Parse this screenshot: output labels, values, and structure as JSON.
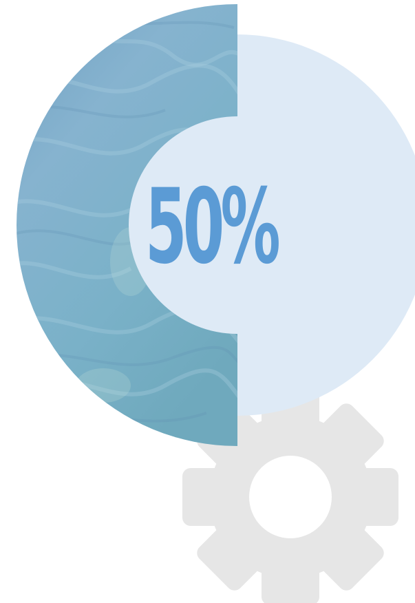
{
  "progress": {
    "label": "50%",
    "value": 0.5
  },
  "icons": {
    "decorative": "gear-icon"
  },
  "colors": {
    "text_accent": "#5b9bd5",
    "light_fill": "#deeaf6",
    "gear_fill": "#e6e6e6",
    "texture_base": "#7aaac8"
  }
}
